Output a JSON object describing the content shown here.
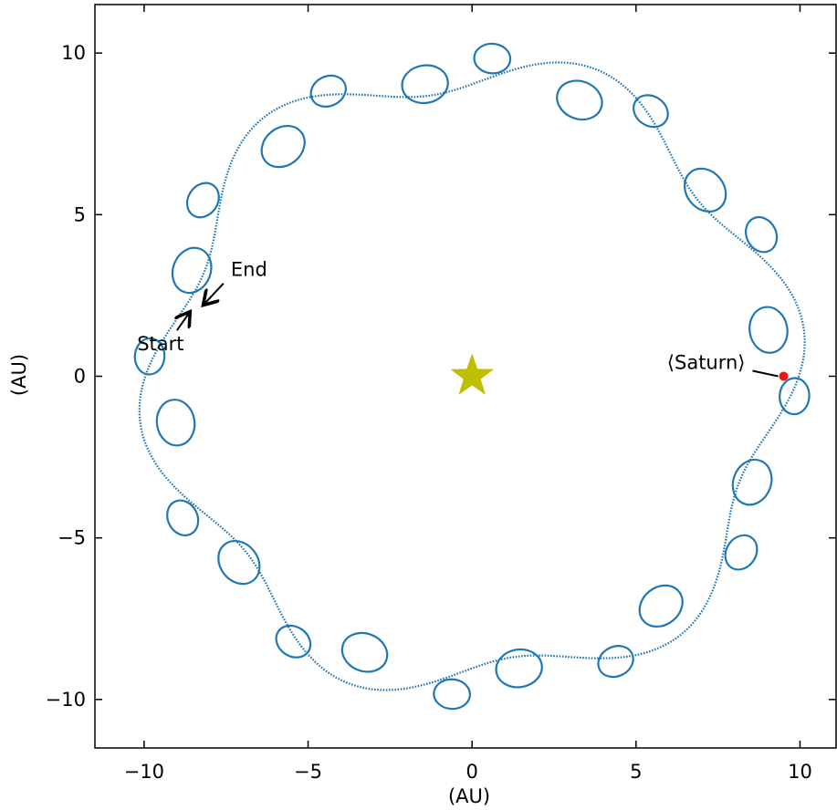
{
  "chart_data": {
    "type": "scatter",
    "title": "",
    "xlabel": "(AU)",
    "ylabel": "(AU)",
    "xlim": [
      -11.5,
      11.1
    ],
    "ylim": [
      -11.5,
      11.5
    ],
    "xticks": [
      -10,
      -5,
      0,
      5,
      10
    ],
    "yticks": [
      -10,
      -5,
      0,
      5,
      10
    ],
    "xtick_labels": [
      "−10",
      "−5",
      "0",
      "5",
      "10"
    ],
    "ytick_labels": [
      "−10",
      "−5",
      "0",
      "5",
      "10"
    ],
    "grid": false,
    "colors": {
      "trajectory": "#1f77b4",
      "star": "#bfbf00",
      "saturn": "#e8191a"
    },
    "star": {
      "x": 0,
      "y": 0
    },
    "saturn": {
      "x": 9.5,
      "y": 0.0,
      "label": "⟨Saturn⟩"
    },
    "annotations": [
      {
        "name": "start",
        "text": "Start",
        "point": [
          -8.6,
          2.0
        ],
        "text_pos": [
          -9.5,
          0.8
        ]
      },
      {
        "name": "end",
        "text": "End",
        "point": [
          -8.2,
          2.2
        ],
        "text_pos": [
          -6.8,
          3.1
        ]
      }
    ],
    "trajectory": {
      "guide_orbit_radius": 9.5,
      "guide_arc_start_deg": 166,
      "guide_arc_end_deg": 526,
      "epicycle_outer_radius": 1.6,
      "epicycle_inner_radius": 0.55,
      "epicycle_count": 12
    }
  }
}
